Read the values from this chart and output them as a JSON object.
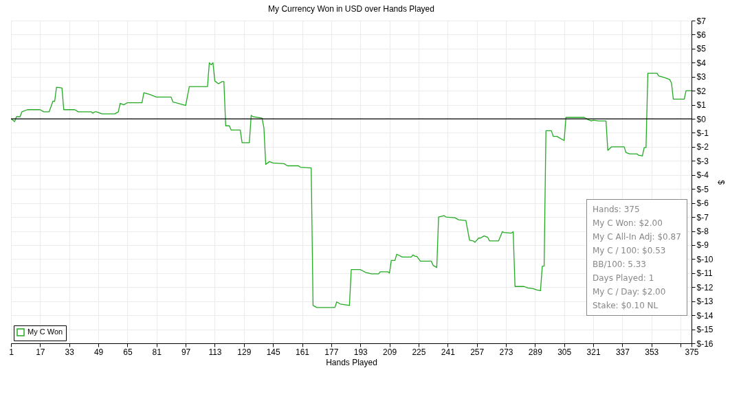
{
  "chart_data": {
    "type": "line",
    "title": "My Currency Won in USD over Hands Played",
    "xlabel": "Hands Played",
    "ylabel": "$",
    "x": [
      1,
      2,
      3,
      4,
      6,
      7,
      10,
      17,
      19,
      22,
      24,
      25,
      26,
      29,
      30,
      36,
      38,
      45,
      46,
      47,
      48,
      51,
      58,
      60,
      61,
      63,
      65,
      73,
      74,
      77,
      81,
      89,
      90,
      93,
      97,
      99,
      109,
      110,
      111,
      112,
      113,
      115,
      117,
      118,
      119,
      121,
      122,
      127,
      128,
      132,
      133,
      134,
      139,
      140,
      141,
      143,
      145,
      151,
      153,
      159,
      160,
      166,
      167,
      169,
      179,
      180,
      182,
      187,
      188,
      193,
      196,
      199,
      203,
      204,
      208,
      209,
      210,
      212,
      213,
      216,
      221,
      222,
      223,
      224,
      226,
      232,
      233,
      235,
      236,
      239,
      240,
      245,
      247,
      251,
      253,
      255,
      256,
      258,
      259,
      261,
      263,
      264,
      269,
      271,
      272,
      276,
      277,
      278,
      283,
      285,
      288,
      290,
      292,
      293,
      294,
      295,
      298,
      299,
      301,
      305,
      306,
      316,
      318,
      320,
      321,
      324,
      328,
      329,
      331,
      338,
      339,
      341,
      345,
      346,
      348,
      349,
      350,
      351,
      356,
      357,
      360,
      361,
      363,
      364,
      365,
      371,
      372,
      375
    ],
    "series": [
      {
        "name": "My C Won",
        "color": "#22aa22",
        "values": [
          0,
          -0.1,
          -0.2,
          0.15,
          0.15,
          0.5,
          0.65,
          0.65,
          0.5,
          0.5,
          1.25,
          1.25,
          2.25,
          2.2,
          0.65,
          0.65,
          0.5,
          0.5,
          0.4,
          0.5,
          0.5,
          0.35,
          0.35,
          0.5,
          1.1,
          1.0,
          1.15,
          1.15,
          1.85,
          1.75,
          1.55,
          1.55,
          1.2,
          1.1,
          0.95,
          2.3,
          2.3,
          4.0,
          3.85,
          4.0,
          2.7,
          2.5,
          2.65,
          2.65,
          -0.5,
          -0.5,
          -0.8,
          -0.8,
          -1.7,
          -1.7,
          0.25,
          0.15,
          0.05,
          -0.65,
          -3.25,
          -3.05,
          -3.15,
          -3.2,
          -3.35,
          -3.35,
          -3.45,
          -3.5,
          -13.3,
          -13.45,
          -13.45,
          -13.05,
          -13.2,
          -13.3,
          -10.75,
          -10.75,
          -10.95,
          -11.05,
          -11.05,
          -10.9,
          -10.9,
          -11.0,
          -10.1,
          -10.1,
          -9.65,
          -9.85,
          -9.85,
          -9.7,
          -9.8,
          -9.8,
          -10.15,
          -10.15,
          -10.45,
          -10.6,
          -7.0,
          -6.9,
          -7.0,
          -7.05,
          -7.2,
          -7.25,
          -8.65,
          -8.7,
          -8.8,
          -8.5,
          -8.5,
          -8.35,
          -8.45,
          -8.7,
          -8.7,
          -8.05,
          -8.1,
          -8.15,
          -8.05,
          -11.95,
          -11.95,
          -12.05,
          -12.1,
          -12.2,
          -12.25,
          -10.5,
          -10.5,
          -0.85,
          -0.85,
          -1.25,
          -1.25,
          -1.55,
          0.1,
          0.1,
          -0.05,
          -0.15,
          -0.1,
          -0.15,
          -0.15,
          -2.25,
          -2.0,
          -2.0,
          -2.4,
          -2.5,
          -2.5,
          -2.6,
          -2.65,
          -2.05,
          -2.05,
          3.25,
          3.25,
          3.05,
          2.95,
          2.9,
          2.8,
          2.55,
          1.4,
          1.4,
          2.0,
          2.0
        ]
      }
    ],
    "xlim": [
      1,
      375
    ],
    "xticks": [
      1,
      17,
      33,
      49,
      65,
      81,
      97,
      113,
      129,
      145,
      161,
      177,
      193,
      209,
      225,
      241,
      257,
      273,
      289,
      305,
      321,
      337,
      353,
      {
        "value": 369,
        "label": null
      },
      375
    ],
    "ylim": [
      -16,
      7
    ],
    "yticks": [
      {
        "value": 7,
        "label": "$7"
      },
      {
        "value": 6,
        "label": "$6"
      },
      {
        "value": 5,
        "label": "$5"
      },
      {
        "value": 4,
        "label": "$4"
      },
      {
        "value": 3,
        "label": "$3"
      },
      {
        "value": 2,
        "label": "$2"
      },
      {
        "value": 1,
        "label": "$1"
      },
      {
        "value": 0,
        "label": "$0"
      },
      {
        "value": -1,
        "label": "$-1"
      },
      {
        "value": -2,
        "label": "$-2"
      },
      {
        "value": -3,
        "label": "$-3"
      },
      {
        "value": -4,
        "label": "$-4"
      },
      {
        "value": -5,
        "label": "$-5"
      },
      {
        "value": -6,
        "label": "$-6"
      },
      {
        "value": -7,
        "label": "$-7"
      },
      {
        "value": -8,
        "label": "$-8"
      },
      {
        "value": -9,
        "label": "$-9"
      },
      {
        "value": -10,
        "label": "$-10"
      },
      {
        "value": -11,
        "label": "$-11"
      },
      {
        "value": -12,
        "label": "$-12"
      },
      {
        "value": -13,
        "label": "$-13"
      },
      {
        "value": -14,
        "label": "$-14"
      },
      {
        "value": -15,
        "label": "$-15"
      },
      {
        "value": -16,
        "label": "$-16"
      }
    ],
    "ref_lines": [
      {
        "axis": "y",
        "value": 0,
        "color": "#000000"
      }
    ],
    "grid": true,
    "legend": "bottom left",
    "marker": "none",
    "line_style": "solid",
    "annotations": [
      "Hands: 375",
      "My C Won: $2.00",
      "My C All-In Adj: $0.87",
      "My C / 100: $0.53",
      "BB/100: 5.33",
      "Days Played: 1",
      "My C / Day: $2.00",
      "Stake: $0.10 NL"
    ]
  }
}
